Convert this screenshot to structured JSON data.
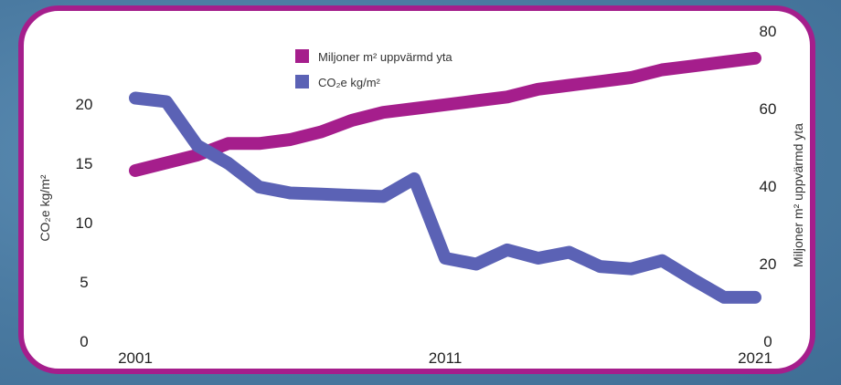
{
  "chart_data": {
    "type": "line",
    "x": [
      2001,
      2002,
      2003,
      2004,
      2005,
      2006,
      2007,
      2008,
      2009,
      2010,
      2011,
      2012,
      2013,
      2014,
      2015,
      2016,
      2017,
      2018,
      2019,
      2020,
      2021
    ],
    "x_tick_labels": [
      "2001",
      "2011",
      "2021"
    ],
    "left_axis": {
      "label": "CO₂e kg/m²",
      "ticks": [
        "0",
        "5",
        "10",
        "15",
        "20"
      ],
      "ylim": [
        0,
        21
      ]
    },
    "right_axis": {
      "label": "Miljoner m² uppvärmd yta",
      "ticks": [
        "0",
        "20",
        "40",
        "60",
        "80"
      ],
      "ylim": [
        0,
        84
      ]
    },
    "series": [
      {
        "name": "Miljoner m² uppvärmd yta",
        "axis": "right",
        "color": "#a51e8c",
        "values": [
          44,
          46,
          48,
          51,
          51,
          52,
          54,
          57,
          59,
          60,
          61,
          62,
          63,
          65,
          66,
          67,
          68,
          70,
          71,
          72,
          73
        ]
      },
      {
        "name": "CO₂e kg/m²",
        "axis": "left",
        "color": "#5b62b5",
        "values": [
          20.5,
          20.2,
          16.5,
          15.0,
          13.0,
          12.5,
          12.4,
          12.3,
          12.2,
          13.7,
          7.0,
          6.5,
          7.7,
          7.0,
          7.5,
          6.3,
          6.1,
          6.8,
          5.2,
          3.7,
          3.7
        ]
      }
    ],
    "legend_position": "top-center",
    "grid": false
  }
}
